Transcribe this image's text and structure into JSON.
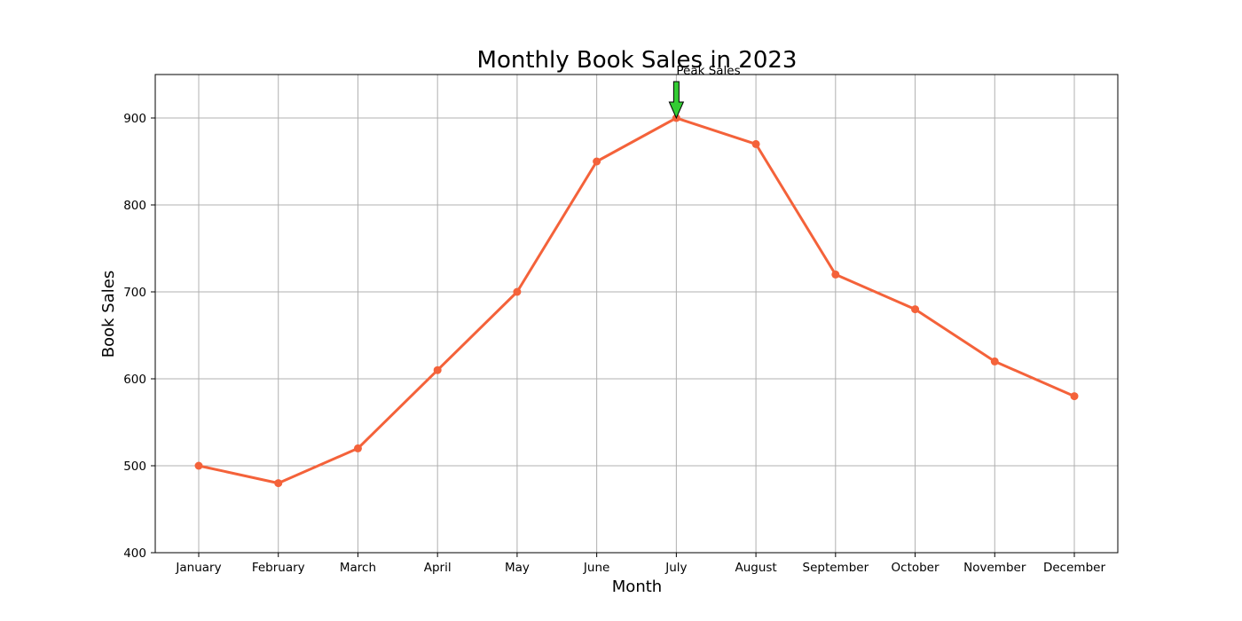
{
  "chart_data": {
    "type": "line",
    "title": "Monthly Book Sales in 2023",
    "xlabel": "Month",
    "ylabel": "Book Sales",
    "categories": [
      "January",
      "February",
      "March",
      "April",
      "May",
      "June",
      "July",
      "August",
      "September",
      "October",
      "November",
      "December"
    ],
    "series": [
      {
        "values": [
          500,
          480,
          520,
          610,
          700,
          850,
          900,
          870,
          720,
          680,
          620,
          580
        ],
        "color": "#f4623a",
        "marker": "circle"
      }
    ],
    "ylim": [
      400,
      950
    ],
    "yticks": [
      400,
      500,
      600,
      700,
      800,
      900
    ],
    "grid": true,
    "annotations": [
      {
        "text": "Peak Sales",
        "category": "July",
        "value": 900,
        "arrow_color": "#33cc33"
      }
    ]
  }
}
